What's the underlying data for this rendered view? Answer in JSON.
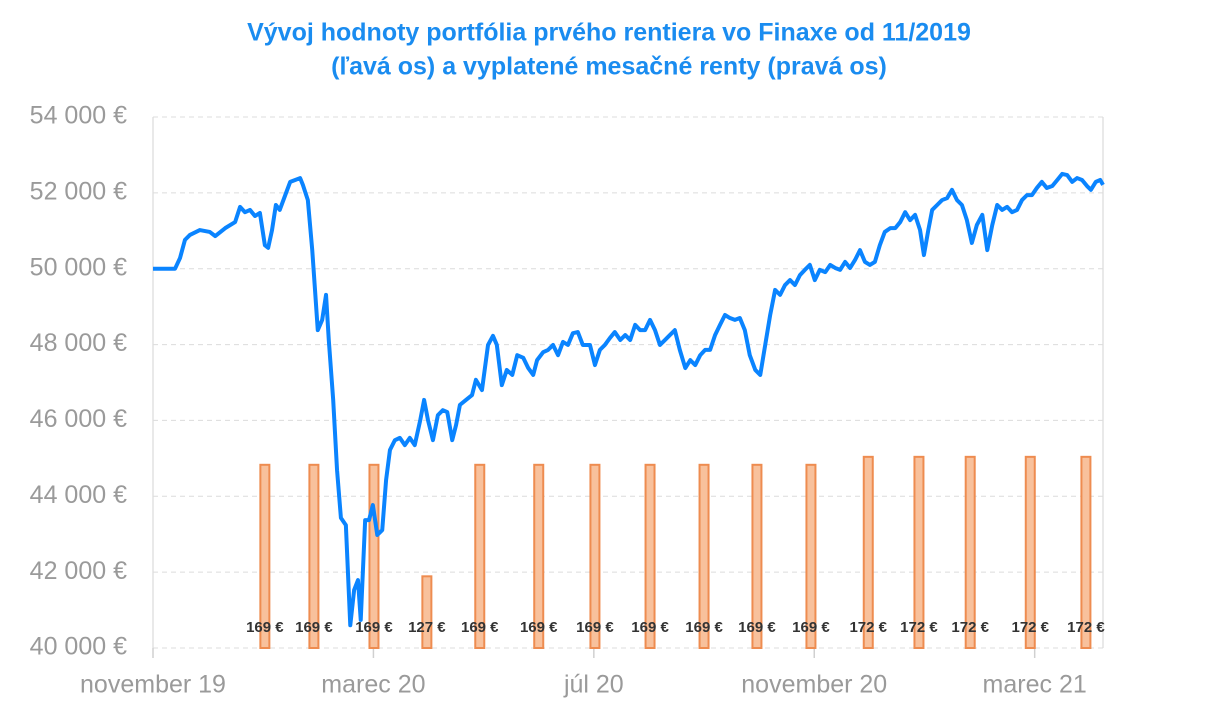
{
  "chart_data": {
    "type": "combo",
    "title": [
      "Vývoj hodnoty portfólia prvého rentiera vo Finaxe od 11/2019",
      "(ľavá os) a vyplatené mesačné renty (pravá os)"
    ],
    "xlim": [
      0,
      17.24
    ],
    "xticks": [
      {
        "value": 0,
        "label": "november 19"
      },
      {
        "value": 4,
        "label": "marec 20"
      },
      {
        "value": 8,
        "label": "júl 20"
      },
      {
        "value": 12,
        "label": "november 20"
      },
      {
        "value": 16,
        "label": "marec 21"
      }
    ],
    "ylim": [
      40000,
      54000
    ],
    "yticks": [
      {
        "value": 40000,
        "label": "40 000 €"
      },
      {
        "value": 42000,
        "label": "42 000 €"
      },
      {
        "value": 44000,
        "label": "44 000 €"
      },
      {
        "value": 46000,
        "label": "46 000 €"
      },
      {
        "value": 48000,
        "label": "48 000 €"
      },
      {
        "value": 50000,
        "label": "50 000 €"
      },
      {
        "value": 52000,
        "label": "52 000 €"
      },
      {
        "value": 54000,
        "label": "54 000 €"
      }
    ],
    "y2lim": [
      100,
      300
    ],
    "grid": true,
    "series": [
      {
        "type": "bar",
        "axis": "y2",
        "color": "#f8c19c",
        "edge_color": "#ee8c50",
        "x": [
          2.03,
          2.92,
          4.01,
          4.97,
          5.93,
          7.0,
          8.02,
          9.02,
          10.0,
          10.96,
          11.94,
          12.98,
          13.9,
          14.83,
          15.92,
          16.93
        ],
        "values": [
          169,
          169,
          169,
          127,
          169,
          169,
          169,
          169,
          169,
          169,
          169,
          172,
          172,
          172,
          172,
          172
        ],
        "value_labels": [
          "169 €",
          "169 €",
          "169 €",
          "127 €",
          "169 €",
          "169 €",
          "169 €",
          "169 €",
          "169 €",
          "169 €",
          "169 €",
          "172 €",
          "172 €",
          "172 €",
          "172 €",
          "172 €"
        ]
      },
      {
        "type": "line",
        "color": "#0a84ff",
        "x": [
          0,
          0.4,
          0.49,
          0.58,
          0.67,
          0.85,
          1.03,
          1.13,
          1.31,
          1.49,
          1.58,
          1.67,
          1.76,
          1.85,
          1.94,
          2.03,
          2.09,
          2.16,
          2.23,
          2.3,
          2.4,
          2.49,
          2.58,
          2.67,
          2.72,
          2.81,
          2.89,
          2.94,
          2.99,
          3.07,
          3.14,
          3.19,
          3.27,
          3.34,
          3.41,
          3.5,
          3.58,
          3.65,
          3.72,
          3.77,
          3.85,
          3.92,
          3.99,
          4.07,
          4.16,
          4.23,
          4.3,
          4.39,
          4.48,
          4.57,
          4.66,
          4.75,
          4.85,
          4.92,
          4.99,
          5.08,
          5.17,
          5.26,
          5.34,
          5.43,
          5.5,
          5.57,
          5.68,
          5.79,
          5.86,
          5.97,
          6.08,
          6.17,
          6.24,
          6.33,
          6.42,
          6.52,
          6.61,
          6.72,
          6.81,
          6.9,
          6.97,
          7.08,
          7.17,
          7.26,
          7.35,
          7.44,
          7.53,
          7.62,
          7.71,
          7.8,
          7.93,
          8.02,
          8.11,
          8.2,
          8.29,
          8.38,
          8.48,
          8.57,
          8.66,
          8.75,
          8.84,
          8.93,
          9.02,
          9.11,
          9.2,
          9.29,
          9.38,
          9.47,
          9.56,
          9.66,
          9.75,
          9.84,
          9.93,
          10.02,
          10.11,
          10.2,
          10.29,
          10.38,
          10.47,
          10.56,
          10.65,
          10.74,
          10.83,
          10.93,
          11.02,
          11.11,
          11.2,
          11.29,
          11.38,
          11.47,
          11.56,
          11.65,
          11.74,
          11.83,
          11.92,
          12.01,
          12.1,
          12.2,
          12.29,
          12.38,
          12.47,
          12.56,
          12.65,
          12.74,
          12.83,
          12.92,
          13.01,
          13.1,
          13.19,
          13.28,
          13.38,
          13.47,
          13.56,
          13.65,
          13.74,
          13.83,
          13.92,
          13.99,
          14.07,
          14.14,
          14.23,
          14.32,
          14.41,
          14.5,
          14.59,
          14.68,
          14.77,
          14.86,
          14.95,
          15.05,
          15.14,
          15.23,
          15.32,
          15.41,
          15.5,
          15.59,
          15.68,
          15.77,
          15.86,
          15.95,
          16.04,
          16.13,
          16.22,
          16.32,
          16.41,
          16.5,
          16.59,
          16.68,
          16.77,
          16.86,
          16.95,
          17.02,
          17.11,
          17.19,
          17.24
        ],
        "values": [
          50000,
          50000,
          50280,
          50760,
          50890,
          51020,
          50970,
          50860,
          51070,
          51230,
          51630,
          51490,
          51550,
          51390,
          51470,
          50620,
          50550,
          51020,
          51680,
          51550,
          51940,
          52290,
          52340,
          52390,
          52210,
          51810,
          50490,
          49440,
          48380,
          48650,
          49310,
          48120,
          46540,
          44690,
          43430,
          43240,
          40600,
          41530,
          41790,
          40740,
          43370,
          43370,
          43770,
          42980,
          43110,
          44430,
          45220,
          45480,
          45540,
          45350,
          45540,
          45350,
          46010,
          46540,
          46010,
          45480,
          46140,
          46270,
          46220,
          45480,
          45880,
          46410,
          46540,
          46670,
          47070,
          46800,
          47990,
          48230,
          47990,
          46930,
          47330,
          47200,
          47720,
          47650,
          47380,
          47200,
          47590,
          47800,
          47860,
          47990,
          47720,
          48070,
          47990,
          48300,
          48330,
          47990,
          47990,
          47460,
          47860,
          47990,
          48170,
          48330,
          48120,
          48250,
          48120,
          48520,
          48380,
          48380,
          48650,
          48380,
          47990,
          48120,
          48250,
          48380,
          47860,
          47380,
          47590,
          47460,
          47720,
          47860,
          47860,
          48250,
          48520,
          48780,
          48700,
          48650,
          48700,
          48380,
          47720,
          47330,
          47200,
          47990,
          48780,
          49440,
          49310,
          49570,
          49700,
          49570,
          49830,
          49970,
          50100,
          49700,
          49970,
          49910,
          50100,
          50020,
          49970,
          50180,
          50020,
          50230,
          50490,
          50180,
          50100,
          50180,
          50620,
          50970,
          51070,
          51070,
          51230,
          51490,
          51280,
          51420,
          51020,
          50360,
          51020,
          51550,
          51680,
          51810,
          51860,
          52080,
          51810,
          51680,
          51280,
          50680,
          51150,
          51420,
          50490,
          51150,
          51680,
          51550,
          51630,
          51490,
          51550,
          51810,
          51940,
          51940,
          52130,
          52290,
          52130,
          52180,
          52340,
          52500,
          52470,
          52290,
          52390,
          52340,
          52180,
          52080,
          52290,
          52340,
          52210
        ]
      }
    ]
  }
}
